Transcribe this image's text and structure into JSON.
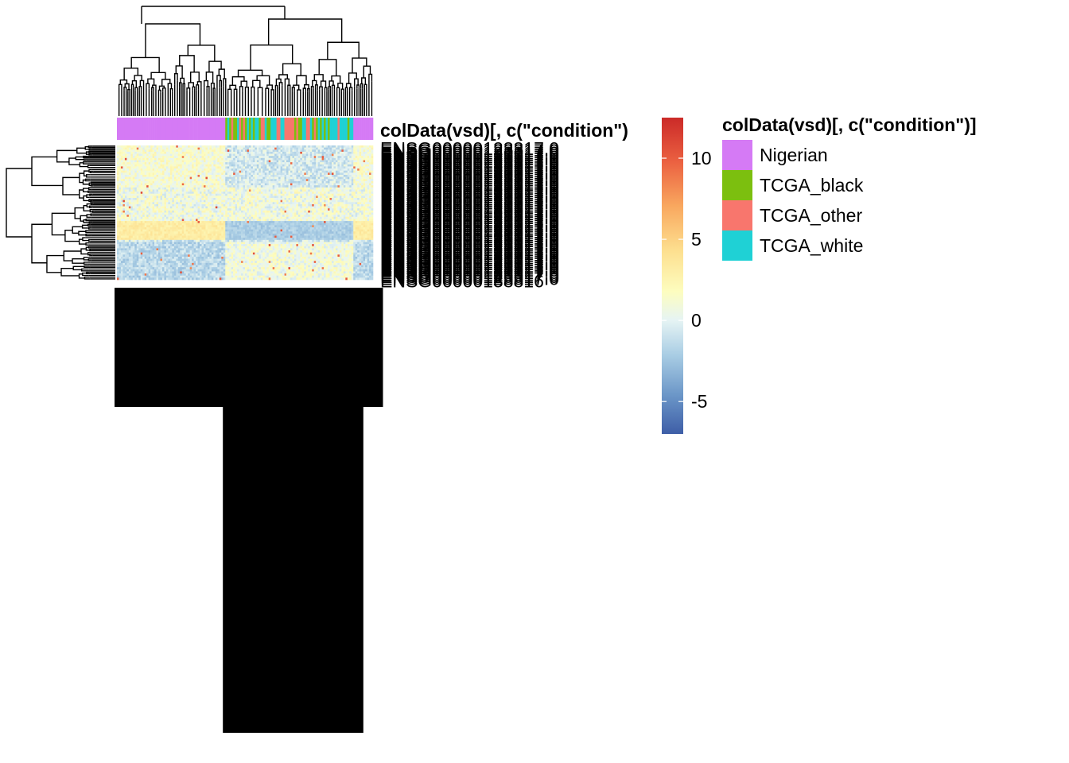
{
  "chart_data": {
    "type": "heatmap",
    "annotation": {
      "title": "colData(vsd)[, c(\"condition\")]",
      "header_text": "colData(vsd)[, c(\"condition\")",
      "levels": [
        {
          "name": "Nigerian",
          "color": "#D57AF5"
        },
        {
          "name": "TCGA_black",
          "color": "#7CBF0F"
        },
        {
          "name": "TCGA_other",
          "color": "#F8766D"
        },
        {
          "name": "TCGA_white",
          "color": "#1FD1D5"
        }
      ]
    },
    "color_scale": {
      "min": -7,
      "max": 12.5,
      "ticks": [
        "10",
        "5",
        "0",
        "-5"
      ],
      "tick_values": [
        10,
        5,
        0,
        -5
      ],
      "palette": [
        "#3E5EA7",
        "#6A95C7",
        "#A9CDE4",
        "#E6F4F4",
        "#FDFDBF",
        "#FDDF8F",
        "#F9A85F",
        "#EB6141",
        "#CB2A28"
      ]
    },
    "row_labels": {
      "first": "ENSG00000123317.0",
      "last": "ENSG00000138816"
    },
    "rows": 64,
    "columns": 130
  }
}
